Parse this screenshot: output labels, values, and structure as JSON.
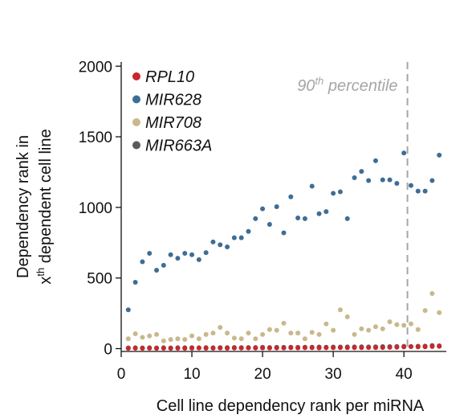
{
  "chart_data": {
    "type": "scatter",
    "xlabel": "Cell line dependency rank per miRNA",
    "ylabel_line1": "Dependency rank in",
    "ylabel_line2_pre": "x",
    "ylabel_line2_sup": "th",
    "ylabel_line2_post": " dependent cell line",
    "xlim": [
      0,
      46
    ],
    "ylim": [
      -20,
      2030
    ],
    "x_ticks": [
      0,
      10,
      20,
      30,
      40
    ],
    "y_ticks": [
      0,
      500,
      1000,
      1500,
      2000
    ],
    "grid": false,
    "legend_position": "top-left",
    "annotation": {
      "text_pre": "90",
      "text_sup": "th",
      "text_post": " percentile",
      "x": 40.5,
      "color": "#a6a6a6"
    },
    "series": [
      {
        "name": "RPL10",
        "color": "#c8272c",
        "x": [
          1,
          2,
          3,
          4,
          5,
          6,
          7,
          8,
          9,
          10,
          11,
          12,
          13,
          14,
          15,
          16,
          17,
          18,
          19,
          20,
          21,
          22,
          23,
          24,
          25,
          26,
          27,
          28,
          29,
          30,
          31,
          32,
          33,
          34,
          35,
          36,
          37,
          38,
          39,
          40,
          41,
          42,
          43,
          44,
          45
        ],
        "y": [
          2,
          3,
          2,
          3,
          2,
          3,
          2,
          3,
          2,
          3,
          4,
          3,
          3,
          4,
          3,
          4,
          4,
          5,
          4,
          5,
          4,
          5,
          5,
          6,
          5,
          6,
          6,
          5,
          6,
          6,
          7,
          6,
          7,
          7,
          8,
          7,
          8,
          9,
          10,
          12,
          14,
          12,
          13,
          15,
          16
        ]
      },
      {
        "name": "MIR628",
        "color": "#3e6d96",
        "x": [
          1,
          2,
          3,
          4,
          5,
          6,
          7,
          8,
          9,
          10,
          11,
          12,
          13,
          14,
          15,
          16,
          17,
          18,
          19,
          20,
          21,
          22,
          23,
          24,
          25,
          26,
          27,
          28,
          29,
          30,
          31,
          32,
          33,
          34,
          35,
          36,
          37,
          38,
          39,
          40,
          41,
          42,
          43,
          44,
          45
        ],
        "y": [
          275,
          470,
          615,
          675,
          555,
          590,
          665,
          640,
          675,
          665,
          630,
          680,
          755,
          735,
          720,
          785,
          785,
          830,
          920,
          990,
          880,
          1005,
          820,
          1075,
          925,
          920,
          1150,
          955,
          970,
          1100,
          1110,
          920,
          1210,
          1255,
          1190,
          1330,
          1195,
          1195,
          1170,
          1385,
          1155,
          1115,
          1115,
          1190,
          1370
        ]
      },
      {
        "name": "MIR708",
        "color": "#c9b88c",
        "x": [
          1,
          2,
          3,
          4,
          5,
          6,
          7,
          8,
          9,
          10,
          11,
          12,
          13,
          14,
          15,
          16,
          17,
          18,
          19,
          20,
          21,
          22,
          23,
          24,
          25,
          26,
          27,
          28,
          29,
          30,
          31,
          32,
          33,
          34,
          35,
          36,
          37,
          38,
          39,
          40,
          41,
          42,
          43,
          44,
          45
        ],
        "y": [
          70,
          105,
          80,
          90,
          100,
          55,
          65,
          70,
          65,
          90,
          70,
          100,
          110,
          150,
          110,
          75,
          70,
          110,
          70,
          100,
          135,
          130,
          180,
          110,
          110,
          70,
          115,
          100,
          175,
          130,
          275,
          225,
          100,
          140,
          130,
          155,
          140,
          190,
          170,
          165,
          175,
          135,
          270,
          390,
          255
        ]
      },
      {
        "name": "MIR663A",
        "color": "#5a5a5a",
        "x": [
          1,
          2,
          3,
          4,
          5,
          6,
          7,
          8,
          9,
          10,
          11,
          12,
          13,
          14,
          15,
          16,
          17,
          18,
          19,
          20,
          21,
          22,
          23,
          24,
          25,
          26,
          27,
          28,
          29,
          30,
          31,
          32,
          33,
          34,
          35,
          36,
          37,
          38,
          39,
          40,
          41,
          42,
          43,
          44,
          45
        ],
        "y": [
          5,
          6,
          5,
          6,
          5,
          6,
          5,
          6,
          6,
          7,
          6,
          7,
          6,
          7,
          7,
          8,
          7,
          8,
          8,
          9,
          8,
          9,
          9,
          10,
          9,
          10,
          10,
          11,
          10,
          11,
          11,
          12,
          12,
          13,
          12,
          13,
          14,
          14,
          15,
          16,
          15,
          17,
          18,
          22,
          20
        ]
      }
    ]
  }
}
